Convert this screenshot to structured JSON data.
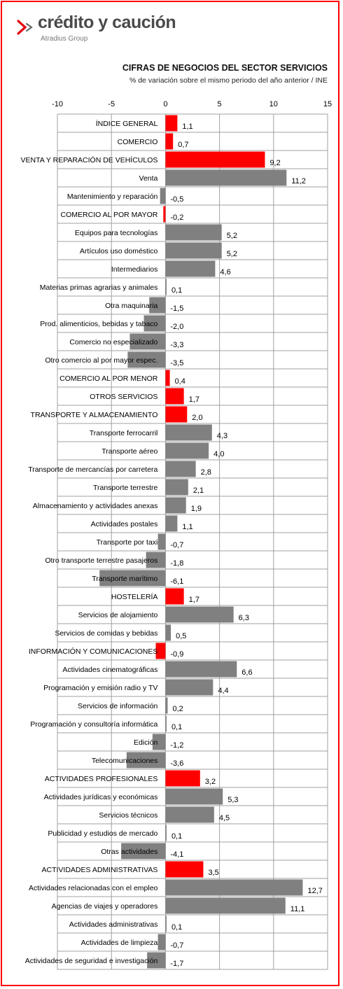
{
  "brand": {
    "name": "crédito y caución",
    "tagline": "Atradius Group",
    "accent": "#e30613"
  },
  "chart_data": {
    "type": "bar",
    "orientation": "horizontal",
    "title": "CIFRAS DE NEGOCIOS DEL SECTOR SERVICIOS",
    "subtitle": "% de variación sobre el mismo periodo del año anterior / INE",
    "xlim": [
      -10,
      15
    ],
    "xticks": [
      -10,
      -5,
      0,
      5,
      10,
      15
    ],
    "grid": true,
    "colors": {
      "highlight": "#ff0000",
      "normal": "#808080"
    },
    "categories": [
      "ÍNDICE GENERAL",
      "COMERCIO",
      "VENTA Y REPARACIÓN DE VEHÍCULOS",
      "Venta",
      "Mantenimiento y reparación",
      "COMERCIO AL POR MAYOR",
      "Equipos para tecnologías",
      "Artículos uso doméstico",
      "Intermediarios",
      "Materias primas agrarias y animales",
      "Otra maquinaria",
      "Prod. alimenticios, bebidas y tabaco",
      "Comercio no especializado",
      "Otro comercio al por mayor espec.",
      "COMERCIO AL POR MENOR",
      "OTROS SERVICIOS",
      "TRANSPORTE Y ALMACENAMIENTO",
      "Transporte ferrocarril",
      "Transporte aéreo",
      "Transporte de mercancías por carretera",
      "Transporte terrestre",
      "Almacenamiento y actividades anexas",
      "Actividades postales",
      "Transporte por taxi",
      "Otro transporte terrestre pasajeros",
      "Transporte marítimo",
      "HOSTELERÍA",
      "Servicios de alojamiento",
      "Servicios de comidas y bebidas",
      "INFORMACIÓN Y COMUNICACIONES",
      "Actividades cinematográficas",
      "Programación y emisión radio y TV",
      "Servicios de información",
      "Programación y consultoría informática",
      "Edición",
      "Telecomunicaciones",
      "ACTIVIDADES PROFESIONALES",
      "Actividades jurídicas y económicas",
      "Servicios técnicos",
      "Publicidad y estudios de mercado",
      "Otras actividades",
      "ACTIVIDADES ADMINISTRATIVAS",
      "Actividades relacionadas con el empleo",
      "Agencias de viajes y operadores",
      "Actividades administrativas",
      "Actividades de limpieza",
      "Actividades de seguridad e investigación"
    ],
    "values": [
      1.1,
      0.7,
      9.2,
      11.2,
      -0.5,
      -0.2,
      5.2,
      5.2,
      4.6,
      0.1,
      -1.5,
      -2.0,
      -3.3,
      -3.5,
      0.4,
      1.7,
      2.0,
      4.3,
      4.0,
      2.8,
      2.1,
      1.9,
      1.1,
      -0.7,
      -1.8,
      -6.1,
      1.7,
      6.3,
      0.5,
      -0.9,
      6.6,
      4.4,
      0.2,
      0.1,
      -1.2,
      -3.6,
      3.2,
      5.3,
      4.5,
      0.1,
      -4.1,
      3.5,
      12.7,
      11.1,
      0.1,
      -0.7,
      -1.7
    ],
    "value_labels": [
      "1,1",
      "0,7",
      "9,2",
      "11,2",
      "-0,5",
      "-0,2",
      "5,2",
      "5,2",
      "4,6",
      "0,1",
      "-1,5",
      "-2,0",
      "-3,3",
      "-3,5",
      "0,4",
      "1,7",
      "2,0",
      "4,3",
      "4,0",
      "2,8",
      "2,1",
      "1,9",
      "1,1",
      "-0,7",
      "-1,8",
      "-6,1",
      "1,7",
      "6,3",
      "0,5",
      "-0,9",
      "6,6",
      "4,4",
      "0,2",
      "0,1",
      "-1,2",
      "-3,6",
      "3,2",
      "5,3",
      "4,5",
      "0,1",
      "-4,1",
      "3,5",
      "12,7",
      "11,1",
      "0,1",
      "-0,7",
      "-1,7"
    ],
    "highlighted": [
      true,
      true,
      true,
      false,
      false,
      true,
      false,
      false,
      false,
      false,
      false,
      false,
      false,
      false,
      true,
      true,
      true,
      false,
      false,
      false,
      false,
      false,
      false,
      false,
      false,
      false,
      true,
      false,
      false,
      true,
      false,
      false,
      false,
      false,
      false,
      false,
      true,
      false,
      false,
      false,
      false,
      true,
      false,
      false,
      false,
      false,
      false
    ]
  }
}
